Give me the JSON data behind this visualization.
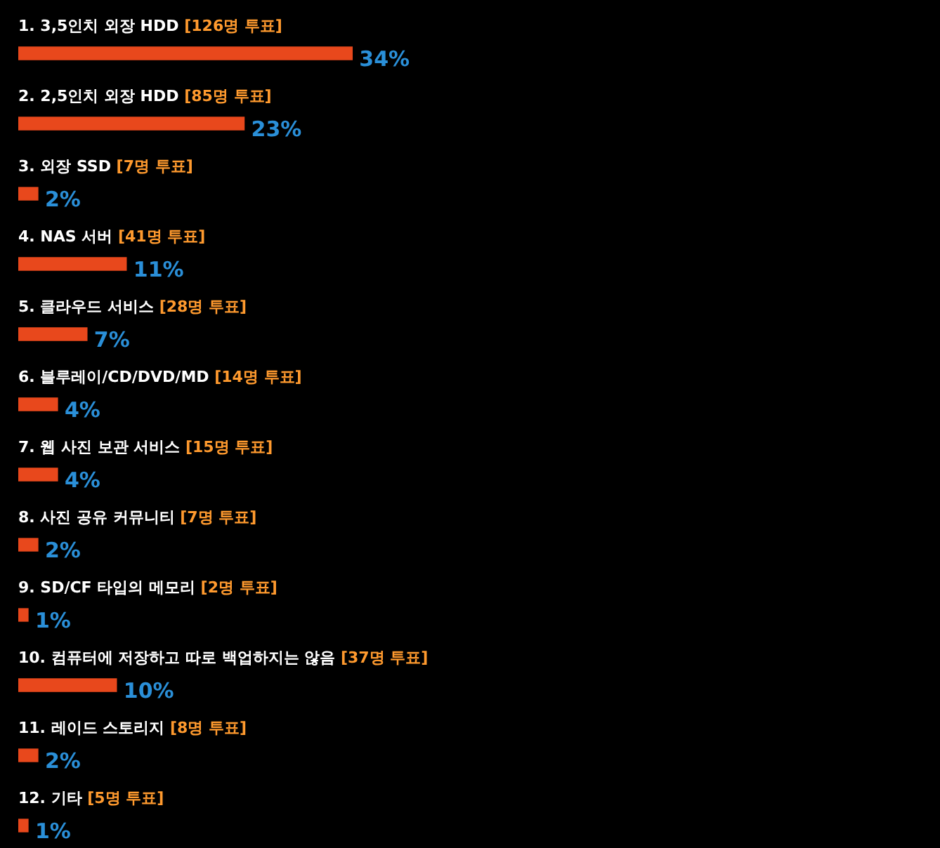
{
  "chart_data": {
    "type": "bar",
    "orientation": "horizontal",
    "categories": [
      "1. 3,5인치 외장 HDD [126명 투표]",
      "2. 2,5인치 외장 HDD [85명 투표]",
      "3. 외장 SSD [7명 투표]",
      "4. NAS 서버 [41명 투표]",
      "5. 클라우드 서비스 [28명 투표]",
      "6. 블루레이/CD/DVD/MD [14명 투표]",
      "7. 웹 사진 보관 서비스 [15명 투표]",
      "8. 사진 공유 커뮤니티 [7명 투표]",
      "9. SD/CF 타입의 메모리 [2명 투표]",
      "10. 컴퓨터에 저장하고 따로 백업하지는 않음 [37명 투표]",
      "11. 레이드 스토리지 [8명 투표]",
      "12. 기타 [5명 투표]"
    ],
    "values": [
      34,
      23,
      2,
      11,
      7,
      4,
      4,
      2,
      1,
      10,
      2,
      1
    ],
    "value_labels": [
      "34%",
      "23%",
      "2%",
      "11%",
      "7%",
      "4%",
      "4%",
      "2%",
      "1%",
      "10%",
      "2%",
      "1%"
    ],
    "color": "#e8481c"
  }
}
